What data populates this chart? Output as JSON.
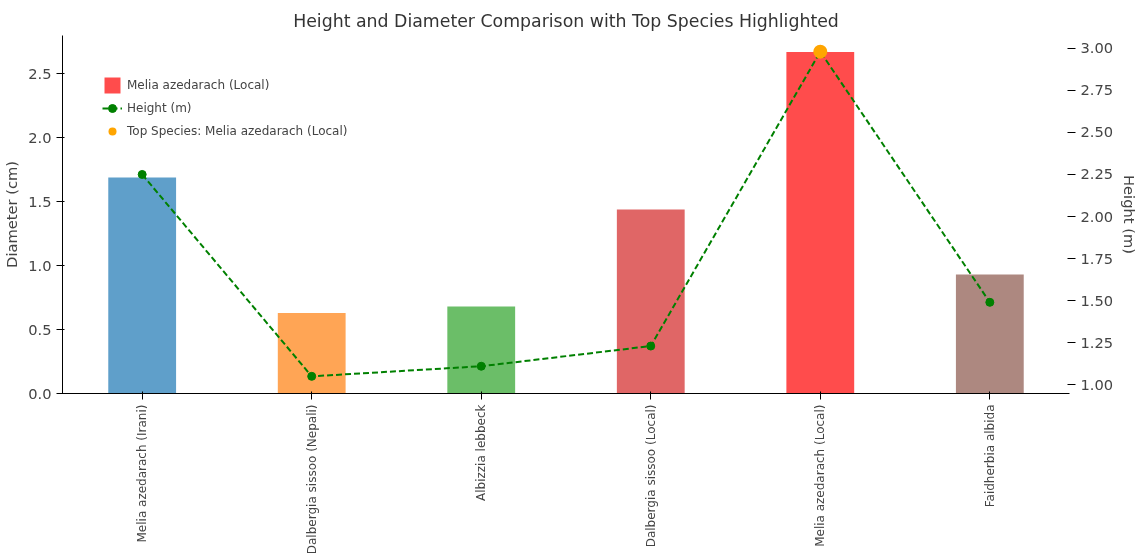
{
  "chart_data": {
    "type": "bar",
    "title": "Height and Diameter Comparison with Top Species Highlighted",
    "ylabel": "Diameter (cm)",
    "y2label": "Height (m)",
    "categories": [
      "Melia azedarach (Irani)",
      "Dalbergia sissoo (Nepali)",
      "Albizzia lebbeck",
      "Dalbergia sissoo (Local)",
      "Melia azedarach (Local)",
      "Faidherbia albida"
    ],
    "series": [
      {
        "colors": [
          "#5f9fca",
          "#ffa555",
          "#6bbe68",
          "#e06666",
          "#ff4c4c",
          "#ad8880"
        ],
        "values": [
          1.69,
          0.63,
          0.68,
          1.44,
          null,
          0.93
        ]
      },
      {
        "type": "bar",
        "name": "Melia azedarach (Local)",
        "color": "#ff4c4c",
        "values": [
          null,
          null,
          null,
          null,
          2.67,
          null
        ]
      },
      {
        "type": "line",
        "name": "Height (m)",
        "color": "#008000",
        "axis": "y2",
        "marker": "circle",
        "line_style": "dashed",
        "values": [
          2.25,
          1.05,
          1.11,
          1.23,
          2.98,
          1.49
        ]
      },
      {
        "type": "scatter",
        "name": "Top Species: Melia azedarach (Local)",
        "color": "#ffa500",
        "axis": "y2",
        "marker": "circle",
        "values": [
          null,
          null,
          null,
          null,
          2.98,
          null
        ]
      }
    ],
    "ylim": [
      0,
      2.8
    ],
    "yticks": [
      {
        "value": 0,
        "label": "0.0"
      },
      {
        "value": 0.5,
        "label": "0.5"
      },
      {
        "value": 1,
        "label": "1.0"
      },
      {
        "value": 1.5,
        "label": "1.5"
      },
      {
        "value": 2,
        "label": "2.0"
      },
      {
        "value": 2.5,
        "label": "2.5"
      }
    ],
    "y2lim": [
      0.948,
      3.076
    ],
    "y2ticks": [
      {
        "value": 1,
        "label": "1.00"
      },
      {
        "value": 1.25,
        "label": "1.25"
      },
      {
        "value": 1.5,
        "label": "1.50"
      },
      {
        "value": 1.75,
        "label": "1.75"
      },
      {
        "value": 2,
        "label": "2.00"
      },
      {
        "value": 2.25,
        "label": "2.25"
      },
      {
        "value": 2.5,
        "label": "2.50"
      },
      {
        "value": 2.75,
        "label": "2.75"
      },
      {
        "value": 3,
        "label": "3.00"
      }
    ],
    "grid": false,
    "legend": "top left"
  }
}
